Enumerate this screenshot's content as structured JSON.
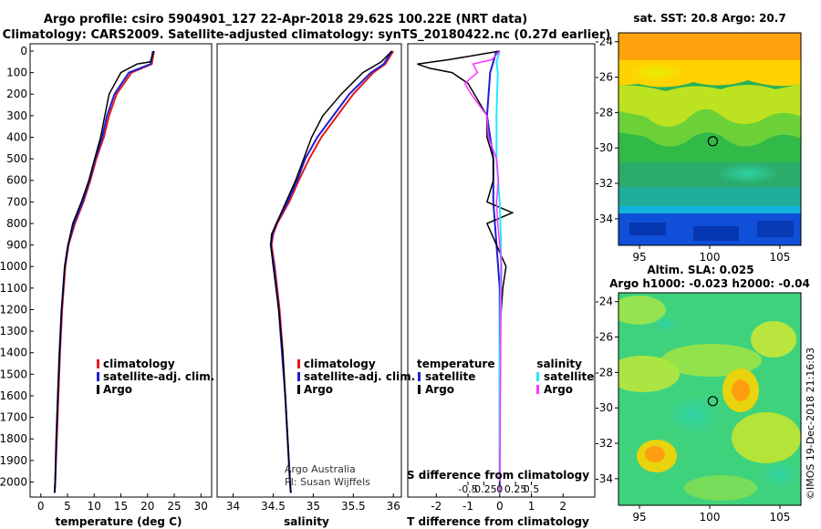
{
  "title_line1": "Argo profile: csiro 5904901_127 22-Apr-2018 29.62S 100.22E (NRT data)",
  "title_line2": "Climatology: CARS2009. Satellite-adjusted climatology: synTS_20180422.nc (0.27d earlier)",
  "credit_org": "Argo Australia",
  "credit_pi": "PI: Susan Wijffels",
  "timestamp": "©IMOS 19-Dec-2018 21:16:03",
  "colors": {
    "climatology": "#e41a1c",
    "satellite": "#1f1fd6",
    "argo": "#000000",
    "salinity_satellite": "#22e6ff",
    "salinity_argo": "#ff33ff"
  },
  "chart_data": [
    {
      "type": "line",
      "name": "temperature",
      "xlabel": "temperature (deg C)",
      "ylabel": "",
      "xlim": [
        -2,
        32
      ],
      "ylim": [
        2070,
        0
      ],
      "xticks": [
        0,
        5,
        10,
        15,
        20,
        25,
        30
      ],
      "yticks": [
        0,
        100,
        200,
        300,
        400,
        500,
        600,
        700,
        800,
        900,
        1000,
        1100,
        1200,
        1300,
        1400,
        1500,
        1600,
        1700,
        1800,
        1900,
        2000
      ],
      "legend": [
        "climatology",
        "satellite-adj. clim.",
        "Argo"
      ],
      "series": [
        {
          "name": "climatology",
          "depth": [
            0,
            60,
            100,
            200,
            300,
            400,
            500,
            600,
            700,
            800,
            900,
            1000,
            1200,
            1400,
            1600,
            1800,
            2000,
            2050
          ],
          "values": [
            21.2,
            20.8,
            17.0,
            14.2,
            12.8,
            11.8,
            10.4,
            9.3,
            8.0,
            6.4,
            5.2,
            4.6,
            4.0,
            3.6,
            3.3,
            3.0,
            2.7,
            2.6
          ]
        },
        {
          "name": "satellite-adj. clim.",
          "depth": [
            0,
            60,
            100,
            200,
            300,
            400,
            500,
            600,
            700,
            800,
            900,
            1000,
            1200,
            1400,
            1600,
            1800,
            2000,
            2050
          ],
          "values": [
            21.0,
            20.6,
            16.5,
            13.8,
            12.4,
            11.5,
            10.2,
            9.1,
            7.8,
            6.2,
            5.1,
            4.5,
            3.9,
            3.5,
            3.2,
            2.9,
            2.7,
            2.6
          ]
        },
        {
          "name": "Argo",
          "depth": [
            0,
            50,
            60,
            100,
            200,
            300,
            400,
            500,
            600,
            700,
            800,
            900,
            1000,
            1200,
            1400,
            1600,
            1800,
            2000,
            2050
          ],
          "values": [
            21.2,
            20.5,
            18.0,
            15.0,
            12.8,
            12.0,
            11.2,
            10.1,
            9.0,
            7.6,
            6.0,
            5.1,
            4.5,
            3.9,
            3.5,
            3.2,
            2.9,
            2.7,
            2.6
          ]
        }
      ]
    },
    {
      "type": "line",
      "name": "salinity",
      "xlabel": "salinity",
      "ylabel": "",
      "xlim": [
        33.8,
        36.1
      ],
      "ylim": [
        2070,
        0
      ],
      "xticks": [
        34,
        34.5,
        35,
        35.5,
        36
      ],
      "legend": [
        "climatology",
        "satellite-adj. clim.",
        "Argo"
      ],
      "series": [
        {
          "name": "climatology",
          "depth": [
            0,
            60,
            100,
            200,
            300,
            400,
            500,
            600,
            700,
            800,
            850,
            900,
            1000,
            1200,
            1400,
            1600,
            1800,
            2000,
            2050
          ],
          "values": [
            36.0,
            35.9,
            35.75,
            35.5,
            35.3,
            35.1,
            34.95,
            34.82,
            34.7,
            34.55,
            34.5,
            34.48,
            34.52,
            34.58,
            34.62,
            34.65,
            34.68,
            34.71,
            34.72
          ]
        },
        {
          "name": "satellite-adj. clim.",
          "depth": [
            0,
            60,
            100,
            200,
            300,
            400,
            500,
            600,
            700,
            800,
            850,
            900,
            1000,
            1200,
            1400,
            1600,
            1800,
            2000,
            2050
          ],
          "values": [
            35.98,
            35.88,
            35.72,
            35.45,
            35.25,
            35.05,
            34.9,
            34.8,
            34.68,
            34.54,
            34.49,
            34.47,
            34.51,
            34.57,
            34.61,
            34.65,
            34.68,
            34.71,
            34.72
          ]
        },
        {
          "name": "Argo",
          "depth": [
            0,
            50,
            100,
            200,
            300,
            400,
            500,
            600,
            700,
            800,
            850,
            900,
            1000,
            1200,
            1400,
            1600,
            1800,
            2000,
            2050
          ],
          "values": [
            35.98,
            35.85,
            35.62,
            35.35,
            35.12,
            34.98,
            34.88,
            34.78,
            34.66,
            34.54,
            34.48,
            34.47,
            34.5,
            34.57,
            34.62,
            34.65,
            34.68,
            34.71,
            34.72
          ]
        }
      ]
    },
    {
      "type": "line",
      "name": "differences",
      "xlabel": "T difference from climatology",
      "xlabel2": "S difference from climatology",
      "xlim": [
        -2.9,
        3.0
      ],
      "ylim": [
        2070,
        0
      ],
      "xticks": [
        -2,
        -1,
        0,
        1,
        2
      ],
      "xticks_s": [
        -0.5,
        -0.25,
        0,
        0.25,
        0.5
      ],
      "xticks_s_labels": [
        "-0.5",
        "-0.25",
        "0",
        "0.25",
        "0.5"
      ],
      "legend_headers": [
        "temperature",
        "salinity"
      ],
      "legend": [
        "satellite",
        "Argo",
        "satellite",
        "Argo"
      ],
      "series": [
        {
          "name": "temperature satellite",
          "depth": [
            0,
            100,
            300,
            500,
            700,
            900,
            1100,
            1400,
            1700,
            2050
          ],
          "values": [
            -0.1,
            -0.3,
            -0.4,
            -0.2,
            -0.2,
            -0.1,
            0.0,
            0.0,
            0.0,
            0.0
          ]
        },
        {
          "name": "temperature Argo",
          "depth": [
            0,
            40,
            60,
            80,
            100,
            150,
            200,
            300,
            400,
            500,
            600,
            700,
            750,
            800,
            900,
            1000,
            1100,
            1300,
            1600,
            2050
          ],
          "values": [
            0.0,
            -1.6,
            -2.6,
            -2.2,
            -1.5,
            -1.0,
            -0.8,
            -0.4,
            -0.4,
            -0.2,
            -0.2,
            -0.4,
            0.4,
            -0.4,
            -0.1,
            0.2,
            0.1,
            0.0,
            0.0,
            0.0
          ]
        },
        {
          "name": "salinity satellite",
          "depth": [
            0,
            50,
            100,
            300,
            500,
            700,
            900,
            1000,
            1200,
            1500,
            2050
          ],
          "values": [
            0.0,
            -0.05,
            -0.03,
            -0.05,
            -0.05,
            0.0,
            0.02,
            0.02,
            0.01,
            0.0,
            0.0
          ]
        },
        {
          "name": "salinity Argo",
          "depth": [
            0,
            40,
            60,
            100,
            150,
            200,
            300,
            400,
            500,
            600,
            700,
            800,
            900,
            1000,
            1200,
            1600,
            2050
          ],
          "values": [
            0.0,
            -0.12,
            -0.42,
            -0.35,
            -0.55,
            -0.45,
            -0.2,
            -0.18,
            -0.05,
            -0.02,
            -0.05,
            -0.03,
            0.0,
            0.03,
            0.02,
            0.01,
            0.0
          ]
        }
      ]
    },
    {
      "type": "heatmap",
      "name": "satellite-sst-map",
      "title": "sat. SST: 20.8 Argo: 20.7",
      "xlim": [
        93.5,
        106.5
      ],
      "ylim": [
        -35.5,
        -23.5
      ],
      "xticks": [
        95,
        100,
        105
      ],
      "yticks": [
        -24,
        -26,
        -28,
        -30,
        -32,
        -34
      ],
      "marker": {
        "lon": 100.22,
        "lat": -29.62
      }
    },
    {
      "type": "heatmap",
      "name": "altimetry-sla-map",
      "title": "Altim. SLA: 0.025",
      "subtitle": "Argo h1000: -0.023 h2000: -0.04",
      "xlim": [
        93.5,
        106.5
      ],
      "ylim": [
        -35.5,
        -23.5
      ],
      "xticks": [
        95,
        100,
        105
      ],
      "yticks": [
        -24,
        -26,
        -28,
        -30,
        -32,
        -34
      ],
      "marker": {
        "lon": 100.22,
        "lat": -29.62
      }
    }
  ]
}
